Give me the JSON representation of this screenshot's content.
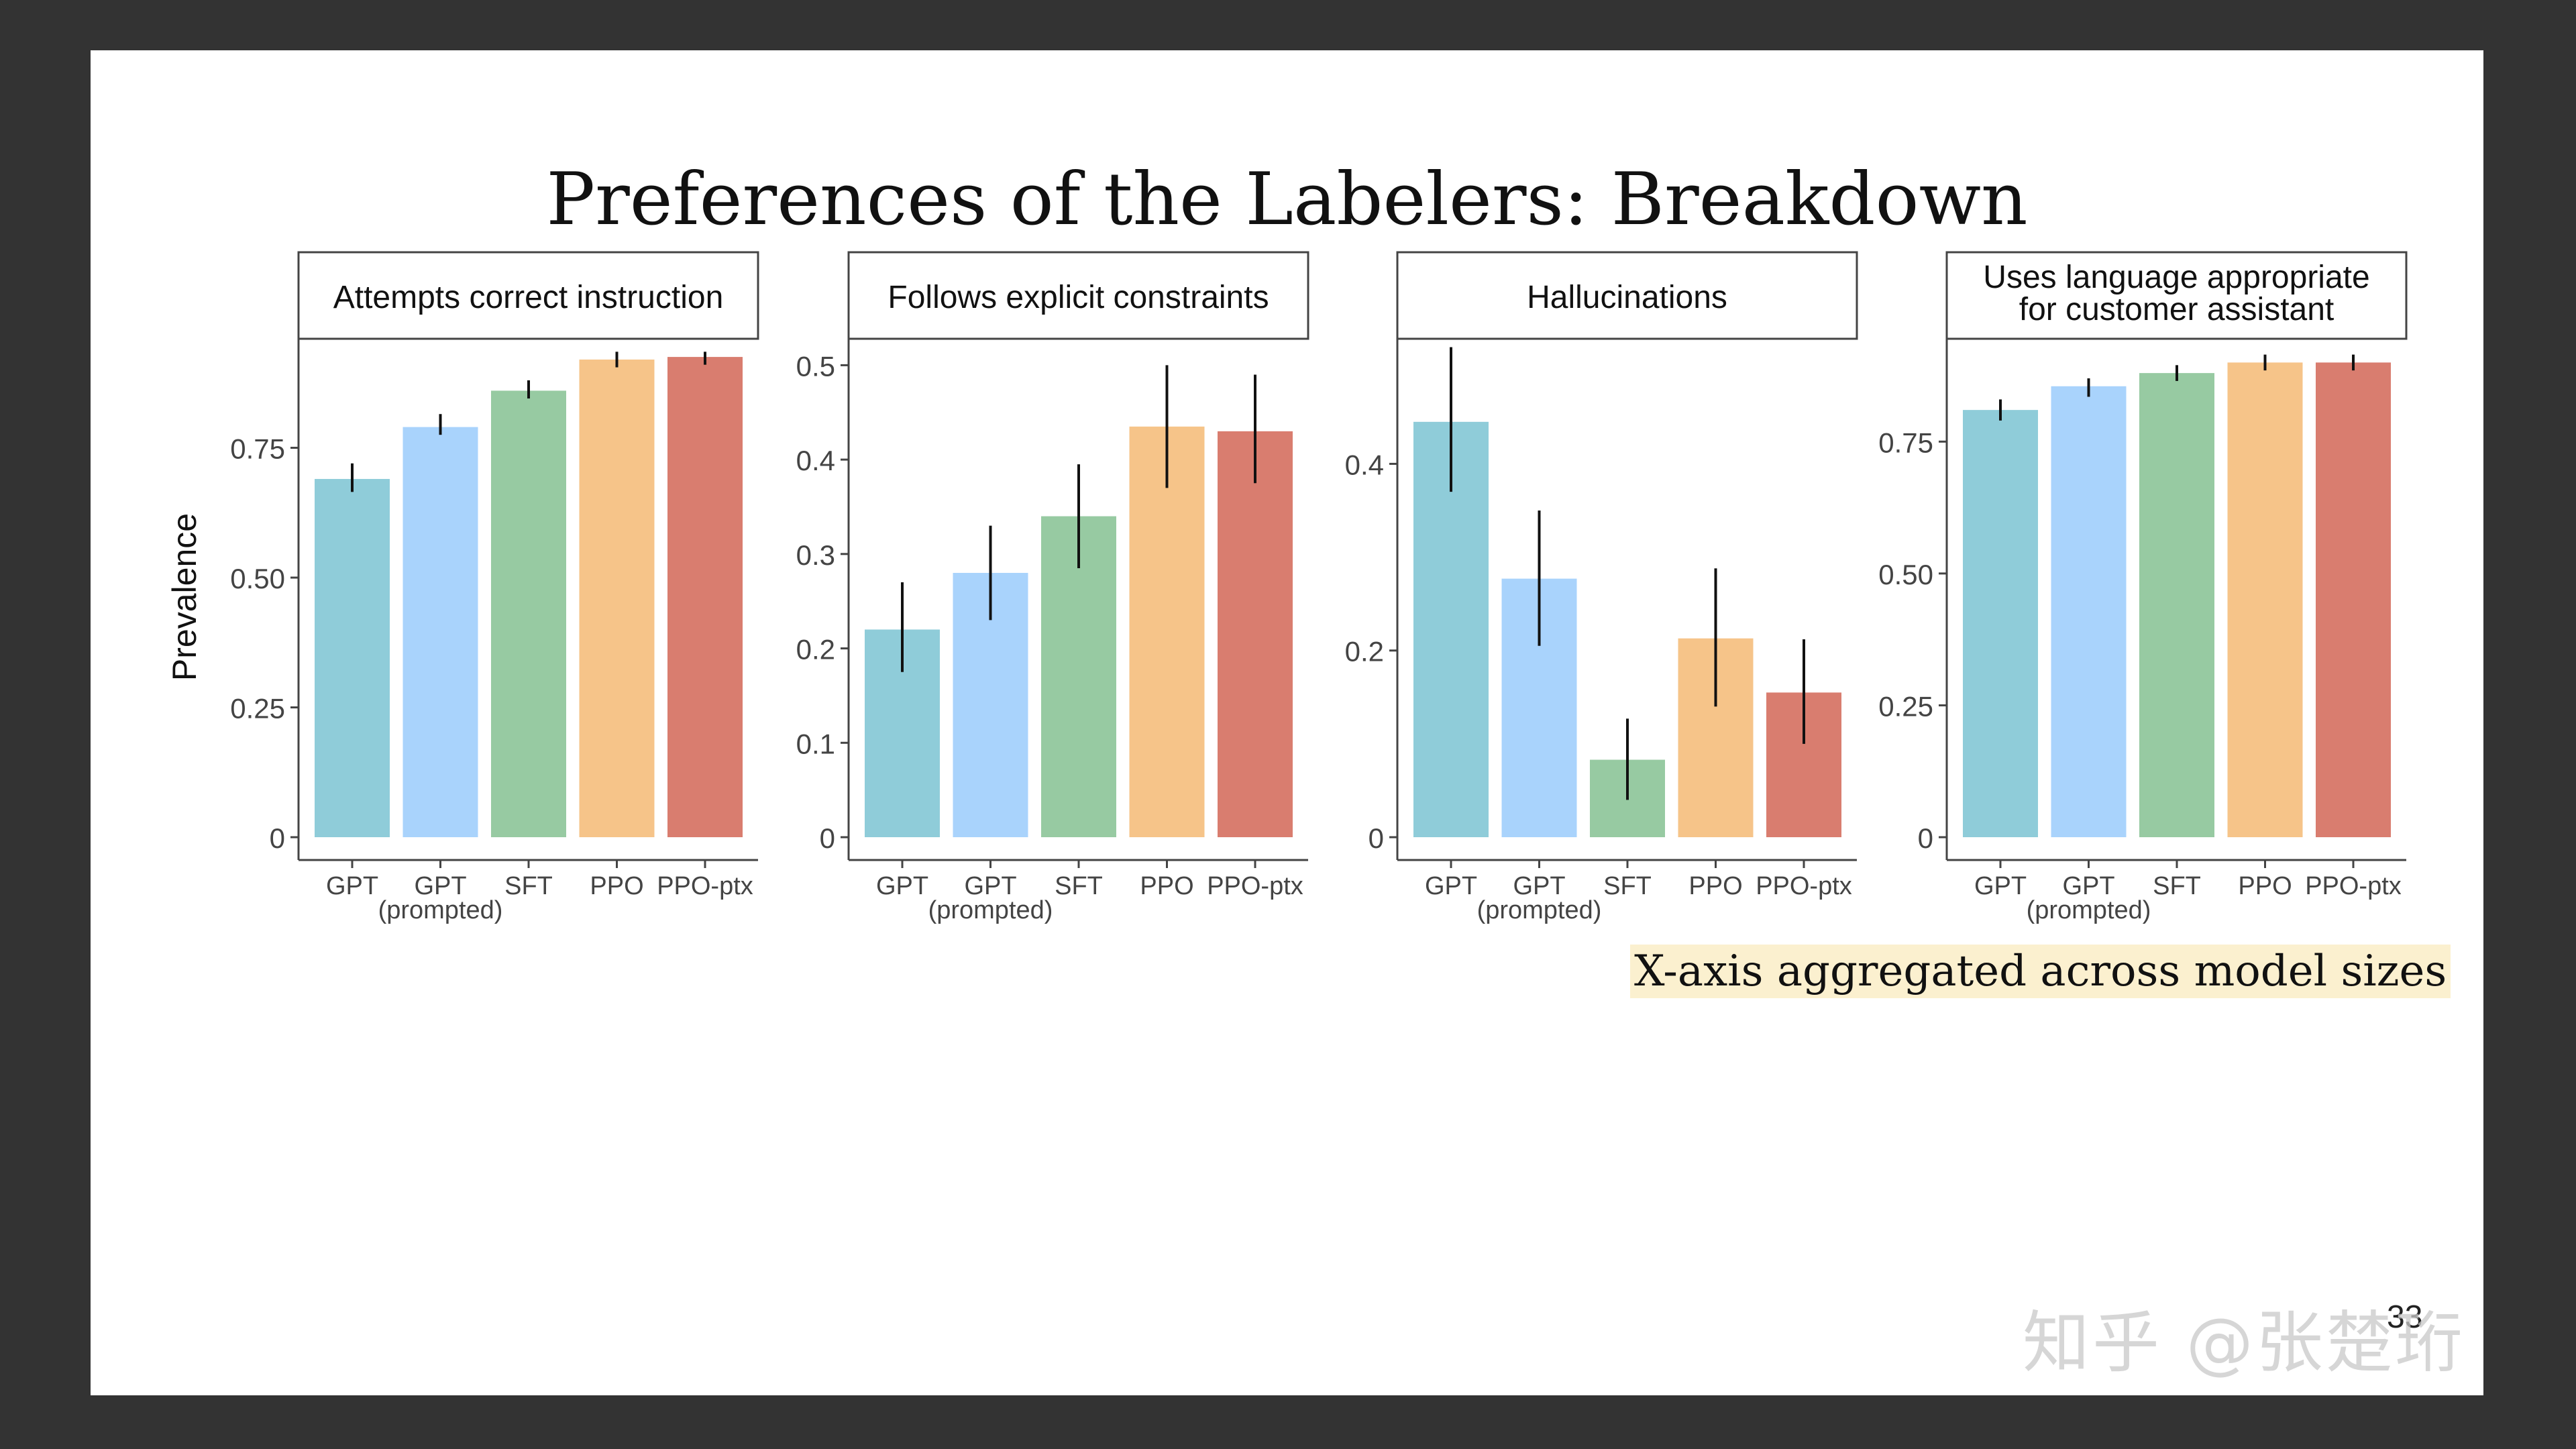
{
  "slide": {
    "title": "Preferences of the Labelers: Breakdown",
    "note": "X-axis aggregated across model sizes",
    "page_number": "33",
    "watermark": "知乎 @张楚珩"
  },
  "colors": {
    "GPT": "#8fccd9",
    "GPT (prompted)": "#a9d3fc",
    "SFT": "#97caa2",
    "PPO": "#f6c489",
    "PPO-ptx": "#d97d6f"
  },
  "shared": {
    "ylabel": "Prevalence",
    "categories": [
      "GPT",
      "GPT",
      "SFT",
      "PPO",
      "PPO-ptx"
    ],
    "category_sublabels": [
      "",
      "(prompted)",
      "",
      "",
      ""
    ]
  },
  "chart_data": [
    {
      "type": "bar",
      "title": "Attempts correct instruction",
      "ylabel": "Prevalence",
      "ylim": [
        0,
        0.96
      ],
      "yticks": [
        0,
        0.25,
        0.5,
        0.75
      ],
      "ytick_labels": [
        "0",
        "0.25",
        "0.50",
        "0.75"
      ],
      "values": [
        0.69,
        0.79,
        0.86,
        0.92,
        0.925
      ],
      "err_low": [
        0.665,
        0.775,
        0.845,
        0.905,
        0.91
      ],
      "err_high": [
        0.72,
        0.815,
        0.88,
        0.935,
        0.935
      ]
    },
    {
      "type": "bar",
      "title": "Follows explicit constraints",
      "ylim": [
        0,
        0.528
      ],
      "yticks": [
        0,
        0.1,
        0.2,
        0.3,
        0.4,
        0.5
      ],
      "ytick_labels": [
        "0",
        "0.1",
        "0.2",
        "0.3",
        "0.4",
        "0.5"
      ],
      "values": [
        0.22,
        0.28,
        0.34,
        0.435,
        0.43
      ],
      "err_low": [
        0.175,
        0.23,
        0.285,
        0.37,
        0.375
      ],
      "err_high": [
        0.27,
        0.33,
        0.395,
        0.5,
        0.49
      ]
    },
    {
      "type": "bar",
      "title": "Hallucinations",
      "ylim": [
        0,
        0.534
      ],
      "yticks": [
        0,
        0.2,
        0.4
      ],
      "ytick_labels": [
        "0",
        "0.2",
        "0.4"
      ],
      "values": [
        0.445,
        0.277,
        0.083,
        0.213,
        0.155
      ],
      "err_low": [
        0.37,
        0.205,
        0.04,
        0.14,
        0.1
      ],
      "err_high": [
        0.525,
        0.35,
        0.127,
        0.288,
        0.212
      ]
    },
    {
      "type": "bar",
      "title": "Uses language appropriate for customer assistant",
      "title_lines": [
        "Uses language appropriate",
        "for customer assistant"
      ],
      "ylim": [
        0,
        0.945
      ],
      "yticks": [
        0,
        0.25,
        0.5,
        0.75
      ],
      "ytick_labels": [
        "0",
        "0.25",
        "0.50",
        "0.75"
      ],
      "values": [
        0.81,
        0.855,
        0.88,
        0.9,
        0.9
      ],
      "err_low": [
        0.79,
        0.835,
        0.865,
        0.885,
        0.885
      ],
      "err_high": [
        0.83,
        0.87,
        0.895,
        0.915,
        0.915
      ]
    }
  ]
}
